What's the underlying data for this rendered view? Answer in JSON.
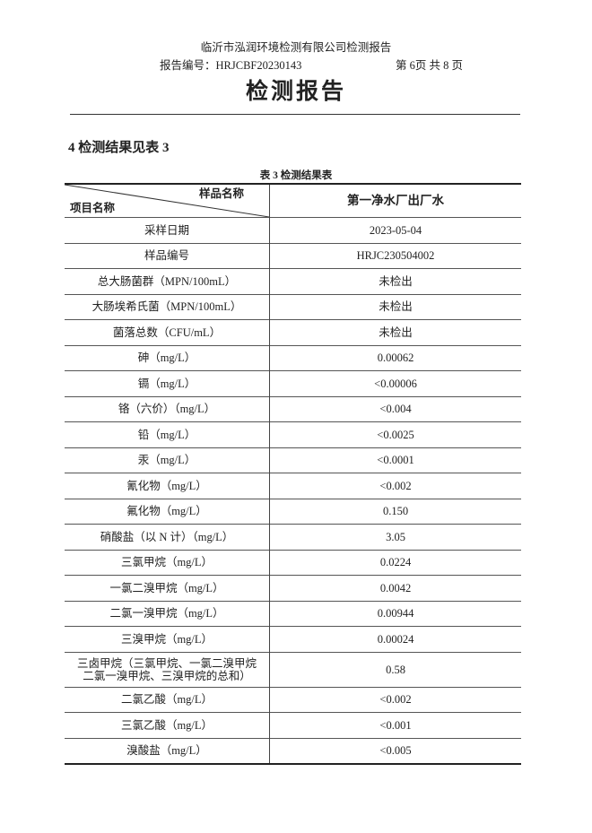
{
  "header": {
    "company": "临沂市泓润环境检测有限公司检测报告",
    "report_no": "报告编号：HRJCBF20230143",
    "page_no": "第 6页 共 8 页",
    "title": "检测报告"
  },
  "section_title": "4 检测结果见表 3",
  "table": {
    "caption": "表 3 检测结果表",
    "header_sample": "样品名称",
    "header_item": "项目名称",
    "column": "第一净水厂出厂水",
    "rows": [
      {
        "item": "采样日期",
        "value": "2023-05-04"
      },
      {
        "item": "样品编号",
        "value": "HRJC230504002"
      },
      {
        "item": "总大肠菌群（MPN/100mL）",
        "value": "未检出"
      },
      {
        "item": "大肠埃希氏菌（MPN/100mL）",
        "value": "未检出"
      },
      {
        "item": "菌落总数（CFU/mL）",
        "value": "未检出"
      },
      {
        "item": "砷（mg/L）",
        "value": "0.00062"
      },
      {
        "item": "镉（mg/L）",
        "value": "<0.00006"
      },
      {
        "item": "铬（六价）（mg/L）",
        "value": "<0.004"
      },
      {
        "item": "铅（mg/L）",
        "value": "<0.0025"
      },
      {
        "item": "汞（mg/L）",
        "value": "<0.0001"
      },
      {
        "item": "氰化物（mg/L）",
        "value": "<0.002"
      },
      {
        "item": "氟化物（mg/L）",
        "value": "0.150"
      },
      {
        "item": "硝酸盐（以 N 计）（mg/L）",
        "value": "3.05"
      },
      {
        "item": "三氯甲烷（mg/L）",
        "value": "0.0224"
      },
      {
        "item": "一氯二溴甲烷（mg/L）",
        "value": "0.0042"
      },
      {
        "item": "二氯一溴甲烷（mg/L）",
        "value": "0.00944"
      },
      {
        "item": "三溴甲烷（mg/L）",
        "value": "0.00024"
      },
      {
        "item": "三卤甲烷（三氯甲烷、一氯二溴甲烷 二氯一溴甲烷、三溴甲烷的总和）",
        "item_line1": "三卤甲烷（三氯甲烷、一氯二溴甲烷",
        "item_line2": "二氯一溴甲烷、三溴甲烷的总和）",
        "value": "0.58"
      },
      {
        "item": "二氯乙酸（mg/L）",
        "value": "<0.002"
      },
      {
        "item": "三氯乙酸（mg/L）",
        "value": "<0.001"
      },
      {
        "item": "溴酸盐（mg/L）",
        "value": "<0.005"
      }
    ]
  }
}
